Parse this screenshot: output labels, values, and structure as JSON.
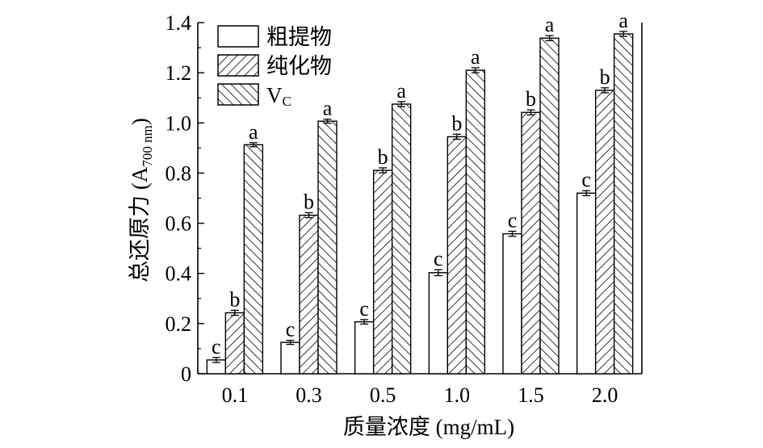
{
  "chart_data": {
    "type": "bar",
    "xlabel": "质量浓度 (mg/mL)",
    "ylabel": "总还原力 (A",
    "ylabel_sub": "700 nm",
    "ylabel_close": ")",
    "ylim": [
      0,
      1.4
    ],
    "yticks": [
      "0",
      "0.2",
      "0.4",
      "0.6",
      "0.8",
      "1.0",
      "1.2",
      "1.4"
    ],
    "categories": [
      "0.1",
      "0.3",
      "0.5",
      "1.0",
      "1.5",
      "2.0"
    ],
    "grid": false,
    "legend_position": "top-left",
    "series": [
      {
        "name": "粗提物",
        "fill": "blank",
        "values": [
          0.055,
          0.125,
          0.207,
          0.403,
          0.558,
          0.72
        ],
        "errors": [
          0.01,
          0.008,
          0.009,
          0.012,
          0.01,
          0.01
        ],
        "labels": [
          "c",
          "c",
          "c",
          "c",
          "c",
          "c"
        ]
      },
      {
        "name": "纯化物",
        "fill": "forward-hatch",
        "values": [
          0.243,
          0.632,
          0.811,
          0.945,
          1.042,
          1.13
        ],
        "errors": [
          0.01,
          0.01,
          0.01,
          0.01,
          0.01,
          0.01
        ],
        "labels": [
          "b",
          "b",
          "b",
          "b",
          "b",
          "b"
        ]
      },
      {
        "name": "V",
        "name_sub": "C",
        "fill": "back-hatch",
        "values": [
          0.913,
          1.007,
          1.075,
          1.21,
          1.338,
          1.355
        ],
        "errors": [
          0.008,
          0.008,
          0.01,
          0.01,
          0.01,
          0.01
        ],
        "labels": [
          "a",
          "a",
          "a",
          "a",
          "a",
          "a"
        ]
      }
    ]
  }
}
